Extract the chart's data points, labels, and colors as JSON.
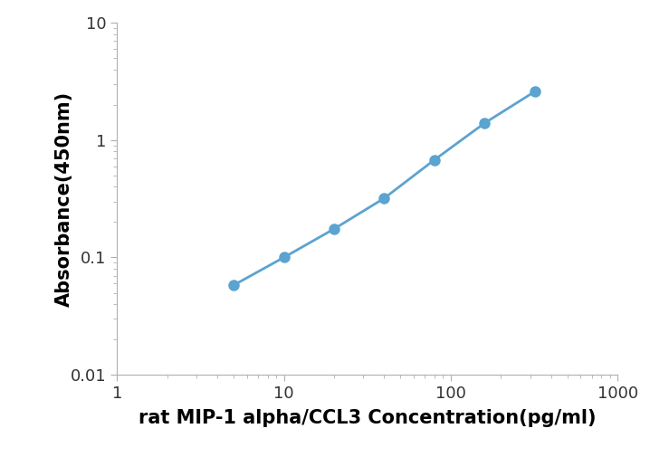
{
  "x_values": [
    5,
    10,
    20,
    40,
    80,
    160,
    320
  ],
  "y_values": [
    0.058,
    0.1,
    0.175,
    0.32,
    0.68,
    1.4,
    2.6
  ],
  "line_color": "#5BA3D0",
  "marker_color": "#5BA3D0",
  "marker_size": 9,
  "line_width": 2.0,
  "xlabel": "rat MIP-1 alpha/CCL3 Concentration(pg/ml)",
  "ylabel": "Absorbance(450nm)",
  "xlim": [
    1,
    1000
  ],
  "ylim": [
    0.01,
    10
  ],
  "xlabel_fontsize": 15,
  "ylabel_fontsize": 15,
  "tick_fontsize": 13,
  "background_color": "#ffffff",
  "spine_color": "#b0b0b0",
  "ytick_labels": [
    "0.01",
    "0.1",
    "1",
    "10"
  ],
  "ytick_values": [
    0.01,
    0.1,
    1,
    10
  ],
  "xtick_labels": [
    "1",
    "10",
    "100",
    "1000"
  ],
  "xtick_values": [
    1,
    10,
    100,
    1000
  ]
}
